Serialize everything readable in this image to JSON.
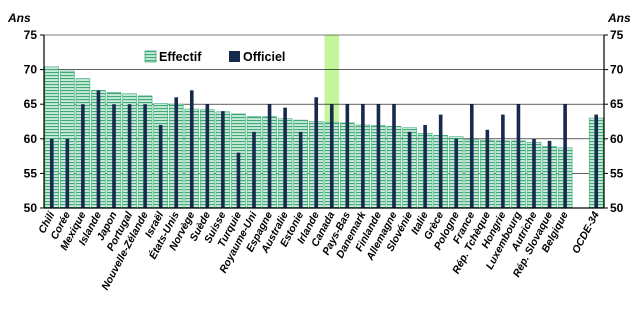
{
  "chart_data": {
    "type": "bar",
    "y_unit_left": "Ans",
    "y_unit_right": "Ans",
    "ylim": [
      50,
      75
    ],
    "yticks": [
      "50",
      "55",
      "60",
      "65",
      "70",
      "75"
    ],
    "grid": true,
    "legend": "top-left",
    "highlight_category": "Canada",
    "colors": {
      "effectif": "#3fa977",
      "effectif_fill": "#c8ead8",
      "officiel": "#17294d",
      "highlight": "#c5f59a"
    },
    "categories": [
      "Chili",
      "Corée",
      "Mexique",
      "Islande",
      "Japon",
      "Portugal",
      "Nouvelle-Zélande",
      "Israël",
      "États-Unis",
      "Norvège",
      "Suède",
      "Suisse",
      "Turquie",
      "Royaume-Uni",
      "Espagne",
      "Australie",
      "Estonie",
      "Irlande",
      "Canada",
      "Pays-Bas",
      "Danemark",
      "Finlande",
      "Allemagne",
      "Slovénie",
      "Italie",
      "Grèce",
      "Pologne",
      "France",
      "Rép. Tchèque",
      "Hongrie",
      "Luxembourg",
      "Autriche",
      "Rép. Slovaque",
      "Belgique",
      "",
      "OCDE-34"
    ],
    "series": [
      {
        "name": "Effectif",
        "values": [
          70.4,
          69.8,
          68.7,
          67.0,
          66.7,
          66.5,
          66.2,
          65.1,
          65.0,
          64.3,
          64.2,
          63.9,
          63.6,
          63.2,
          63.2,
          62.9,
          62.7,
          62.5,
          62.4,
          62.3,
          62.0,
          61.9,
          61.8,
          61.6,
          60.8,
          60.5,
          60.3,
          59.9,
          59.8,
          59.7,
          59.7,
          59.5,
          58.9,
          58.7,
          null,
          63.0
        ]
      },
      {
        "name": "Officiel",
        "values": [
          60.0,
          60.0,
          65.0,
          67.0,
          65.0,
          65.0,
          65.0,
          62.0,
          66.0,
          67.0,
          65.0,
          64.0,
          58.0,
          61.0,
          65.0,
          64.5,
          61.0,
          66.0,
          65.0,
          65.0,
          65.0,
          65.0,
          65.0,
          61.0,
          62.0,
          63.5,
          60.0,
          65.0,
          61.3,
          63.5,
          65.0,
          60.0,
          59.7,
          65.0,
          null,
          63.5
        ]
      }
    ]
  }
}
